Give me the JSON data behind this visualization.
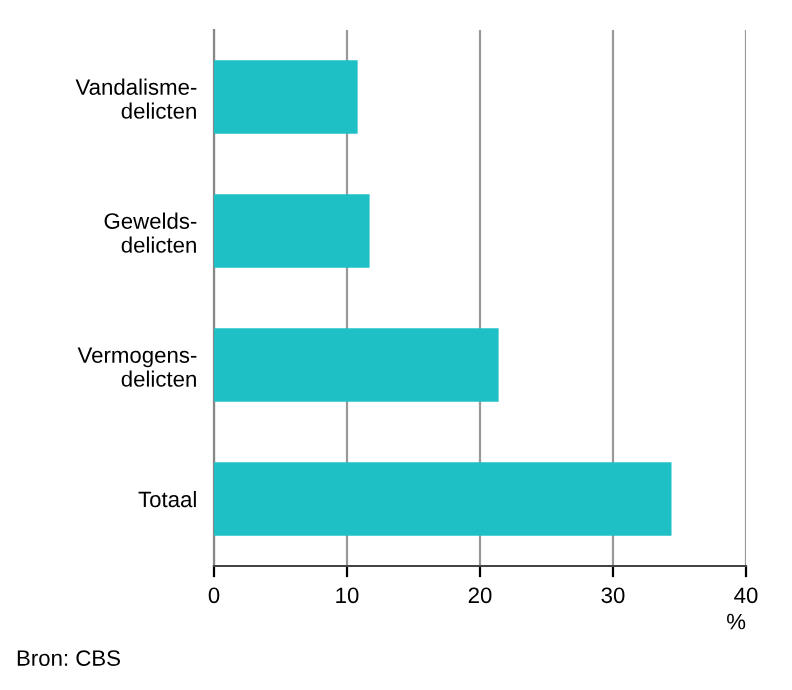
{
  "chart_data": {
    "type": "bar",
    "orientation": "horizontal",
    "categories": [
      "Vandalisme-\ndelicten",
      "Gewelds-\ndelicten",
      "Vermogens-\ndelicten",
      "Totaal"
    ],
    "values": [
      10.8,
      11.7,
      21.4,
      34.4
    ],
    "color": "#1fbfc6",
    "xlim": [
      0,
      40
    ],
    "xticks": [
      0,
      10,
      20,
      30,
      40
    ],
    "xlabel": "%",
    "grid": "x",
    "annotations": [
      "Bron: CBS"
    ]
  }
}
